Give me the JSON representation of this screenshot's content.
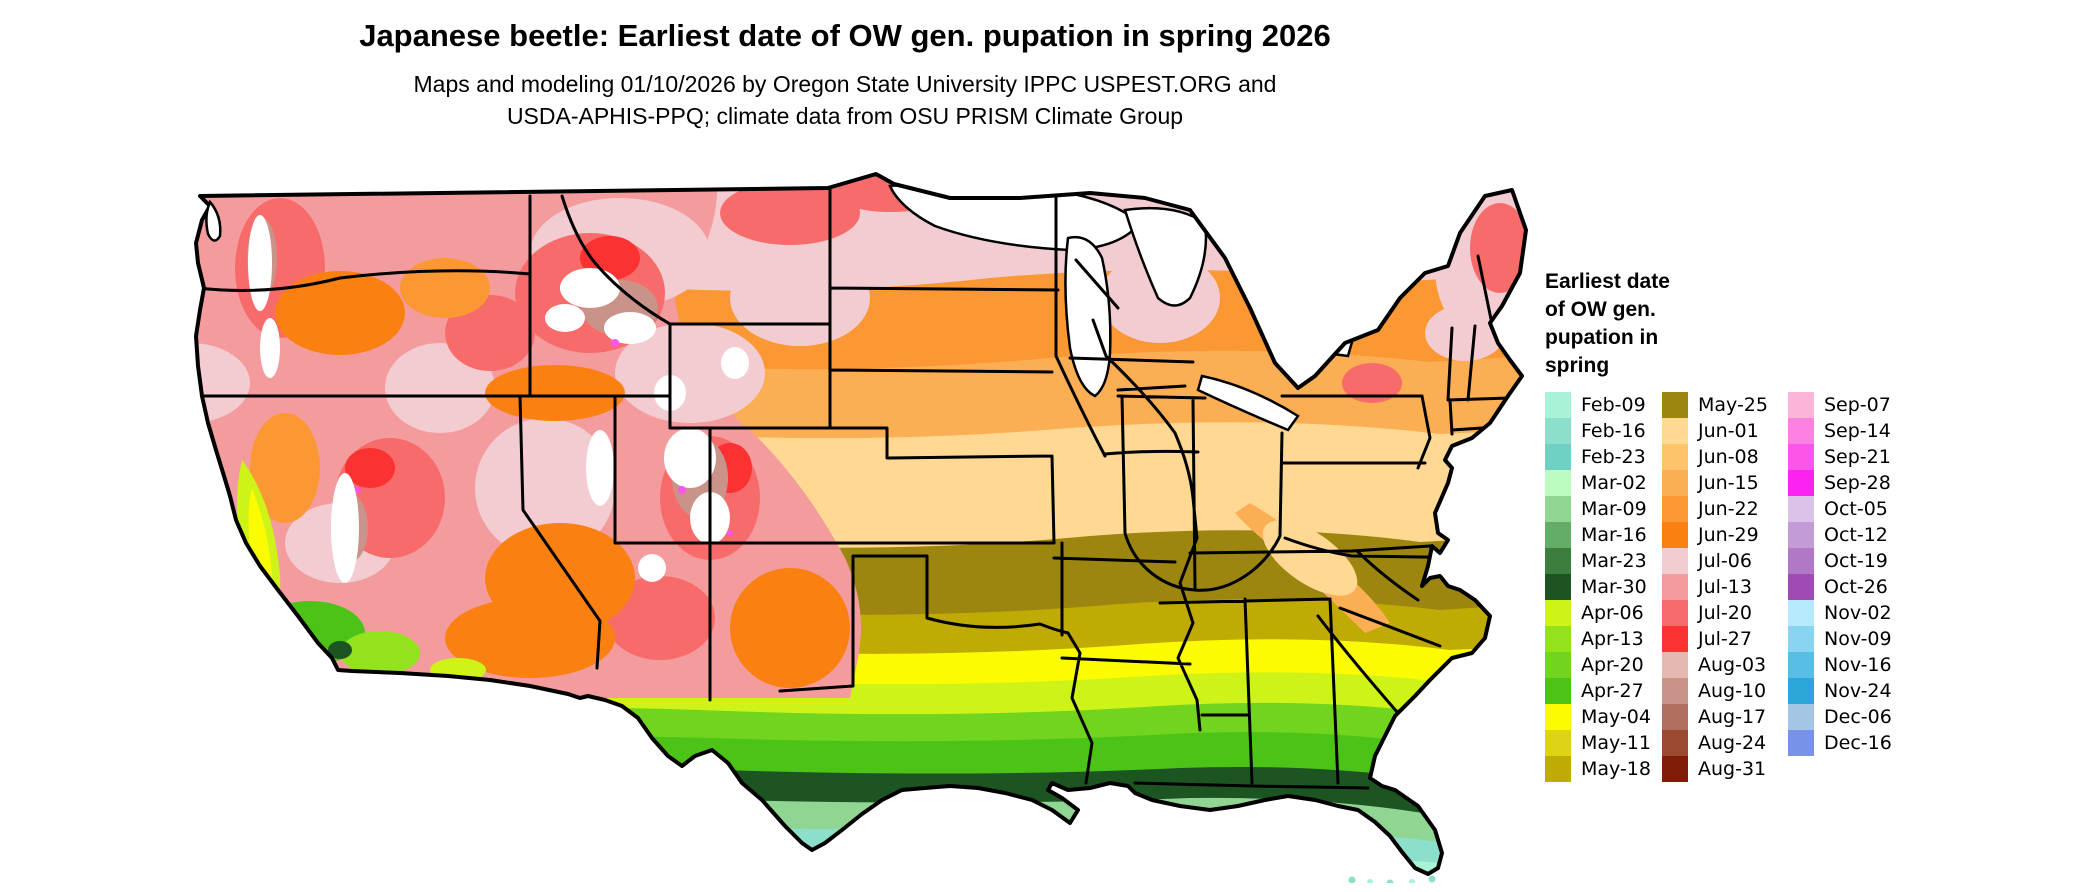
{
  "header": {
    "title": "Japanese beetle: Earliest date of OW gen. pupation in spring 2026",
    "subtitle_line1": "Maps and modeling 01/10/2026 by Oregon State University IPPC USPEST.ORG and",
    "subtitle_line2": "USDA-APHIS-PPQ; climate data from OSU PRISM Climate Group"
  },
  "legend": {
    "title_lines": [
      "Earliest date",
      "of OW gen.",
      "pupation in",
      "spring"
    ],
    "columns": [
      [
        "Feb-09",
        "Feb-16",
        "Feb-23",
        "Mar-02",
        "Mar-09",
        "Mar-16",
        "Mar-23",
        "Mar-30",
        "Apr-06",
        "Apr-13",
        "Apr-20",
        "Apr-27",
        "May-04",
        "May-11",
        "May-18"
      ],
      [
        "May-25",
        "Jun-01",
        "Jun-08",
        "Jun-15",
        "Jun-22",
        "Jun-29",
        "Jul-06",
        "Jul-13",
        "Jul-20",
        "Jul-27",
        "Aug-03",
        "Aug-10",
        "Aug-17",
        "Aug-24",
        "Aug-31"
      ],
      [
        "Sep-07",
        "Sep-14",
        "Sep-21",
        "Sep-28",
        "Oct-05",
        "Oct-12",
        "Oct-19",
        "Oct-26",
        "Nov-02",
        "Nov-09",
        "Nov-16",
        "Nov-24",
        "Dec-06",
        "Dec-16"
      ]
    ]
  },
  "colors": {
    "Feb-09": "#a8f3d6",
    "Feb-16": "#8ce0cb",
    "Feb-23": "#6fd1c4",
    "Mar-02": "#bdfcc1",
    "Mar-09": "#90d592",
    "Mar-16": "#64ad66",
    "Mar-23": "#3b7e3d",
    "Mar-30": "#1c5422",
    "Apr-06": "#cdf318",
    "Apr-13": "#92e21d",
    "Apr-20": "#71d41f",
    "Apr-27": "#4cc417",
    "May-04": "#fbfb02",
    "May-11": "#dcd414",
    "May-18": "#c0ab04",
    "May-25": "#9c8610",
    "Jun-01": "#ffd993",
    "Jun-08": "#fec46c",
    "Jun-15": "#fcae55",
    "Jun-22": "#fb9833",
    "Jun-29": "#fb8012",
    "Jul-06": "#f3ccd1",
    "Jul-13": "#f49c9d",
    "Jul-20": "#f76b6b",
    "Jul-27": "#fb3231",
    "Aug-03": "#e5b9b1",
    "Aug-10": "#c9938a",
    "Aug-17": "#b26f60",
    "Aug-24": "#9b4a32",
    "Aug-31": "#7f1d09",
    "Sep-07": "#fcb5d9",
    "Sep-14": "#fc82e1",
    "Sep-21": "#fc55e9",
    "Sep-28": "#fc22f1",
    "Oct-05": "#dcc1e9",
    "Oct-12": "#c49cd5",
    "Oct-19": "#b078c5",
    "Oct-26": "#a04ab5",
    "Nov-02": "#b5e9fc",
    "Nov-09": "#89d5f1",
    "Nov-16": "#59bde5",
    "Nov-24": "#2da5d9",
    "Dec-06": "#a5c5e5",
    "Dec-16": "#7992e9"
  },
  "map": {
    "region": "Continental United States (lower 48 states)",
    "style": "raster choropleth with black state borders; Great Lakes and high-elevation mountain areas shown white",
    "regional_summary": [
      {
        "area": "south Florida tip and Florida Keys",
        "dates": "Feb-09 to Feb-23 (mint/teal)"
      },
      {
        "area": "central Florida and south Texas tip",
        "dates": "Feb-16 to Mar-09 (teal/sage green)"
      },
      {
        "area": "Gulf Coast (TX/LA/MS/AL/north FL)",
        "dates": "Mar-16 to Mar-30 (dark green)"
      },
      {
        "area": "deep South band (central TX to GA/SC coast)",
        "dates": "Apr-06 to Apr-27 (greens)"
      },
      {
        "area": "band through north TX, LA, MS, AL, GA",
        "dates": "May-04 (yellow)"
      },
      {
        "area": "OK, AR, TN, northern AL/GA, VA",
        "dates": "May-11 to May-25 (olive)"
      },
      {
        "area": "KS, MO, KY, WV, VA",
        "dates": "Jun-01 to Jun-08 (peach/tan)"
      },
      {
        "area": "NE, IA, IL, IN, OH, PA, south New England",
        "dates": "Jun-15 to Jun-29 (orange)"
      },
      {
        "area": "ND, MN, WI, upper MI, upstate NY, ME",
        "dates": "Jul-06 to Jul-27 (pink/red)"
      },
      {
        "area": "western mountains (Cascades, Sierra, Rockies)",
        "dates": "Jul-06 to Aug-31 (pink/red/brown) with white peaks"
      },
      {
        "area": "California Central Valley",
        "dates": "Apr-06 to May-04 (yellow-green)"
      }
    ]
  },
  "chart_data": {
    "type": "heatmap",
    "title": "Japanese beetle: Earliest date of OW gen. pupation in spring 2026",
    "legend_title": "Earliest date of OW gen. pupation in spring",
    "categories": [
      "Feb-09",
      "Feb-16",
      "Feb-23",
      "Mar-02",
      "Mar-09",
      "Mar-16",
      "Mar-23",
      "Mar-30",
      "Apr-06",
      "Apr-13",
      "Apr-20",
      "Apr-27",
      "May-04",
      "May-11",
      "May-18",
      "May-25",
      "Jun-01",
      "Jun-08",
      "Jun-15",
      "Jun-22",
      "Jun-29",
      "Jul-06",
      "Jul-13",
      "Jul-20",
      "Jul-27",
      "Aug-03",
      "Aug-10",
      "Aug-17",
      "Aug-24",
      "Aug-31",
      "Sep-07",
      "Sep-14",
      "Sep-21",
      "Sep-28",
      "Oct-05",
      "Oct-12",
      "Oct-19",
      "Oct-26",
      "Nov-02",
      "Nov-09",
      "Nov-16",
      "Nov-24",
      "Dec-06",
      "Dec-16"
    ],
    "legend_position": "right",
    "notes": "Choropleth of earliest overwintering-generation pupation date across CONUS; dates get earlier from north (Jul) to the Gulf Coast/Florida (Feb-Mar); mountain west mottled Jul-Aug with white (no value) peaks."
  }
}
